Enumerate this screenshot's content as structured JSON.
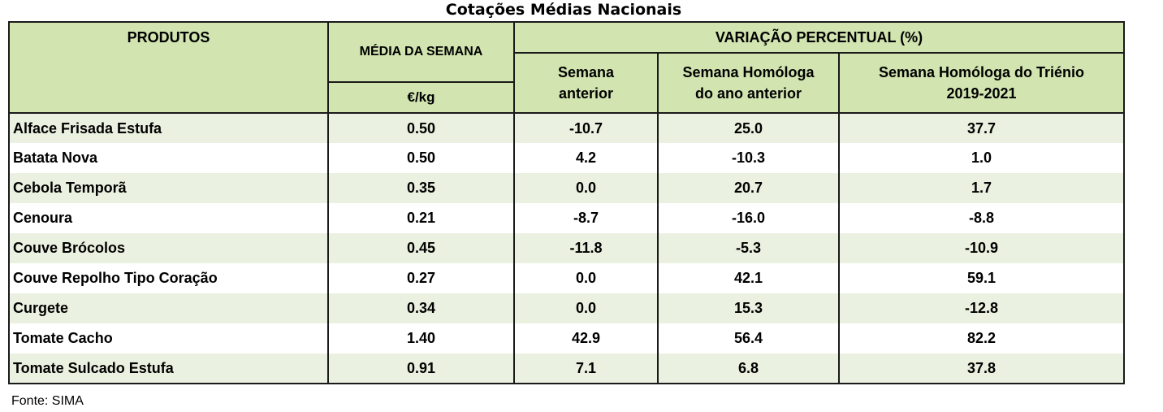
{
  "title": "Cotações Médias Nacionais",
  "headers": {
    "produtos": "PRODUTOS",
    "media": "MÉDIA DA SEMANA",
    "unit": "€/kg",
    "variacao": "VARIAÇÃO PERCENTUAL (%)",
    "semana_anterior_1": "Semana",
    "semana_anterior_2": "anterior",
    "homologa_1": "Semana Homóloga",
    "homologa_2": "do ano anterior",
    "trienio_1": "Semana Homóloga do Triénio",
    "trienio_2": "2019-2021"
  },
  "rows": [
    {
      "produto": "Alface Frisada Estufa",
      "media": "0.50",
      "anterior": "-10.7",
      "homologa": "25.0",
      "trienio": "37.7"
    },
    {
      "produto": "Batata Nova",
      "media": "0.50",
      "anterior": "4.2",
      "homologa": "-10.3",
      "trienio": "1.0"
    },
    {
      "produto": "Cebola Temporã",
      "media": "0.35",
      "anterior": "0.0",
      "homologa": "20.7",
      "trienio": "1.7"
    },
    {
      "produto": "Cenoura",
      "media": "0.21",
      "anterior": "-8.7",
      "homologa": "-16.0",
      "trienio": "-8.8"
    },
    {
      "produto": "Couve Brócolos",
      "media": "0.45",
      "anterior": "-11.8",
      "homologa": "-5.3",
      "trienio": "-10.9"
    },
    {
      "produto": "Couve Repolho Tipo Coração",
      "media": "0.27",
      "anterior": "0.0",
      "homologa": "42.1",
      "trienio": "59.1"
    },
    {
      "produto": "Curgete",
      "media": "0.34",
      "anterior": "0.0",
      "homologa": "15.3",
      "trienio": "-12.8"
    },
    {
      "produto": "Tomate Cacho",
      "media": "1.40",
      "anterior": "42.9",
      "homologa": "56.4",
      "trienio": "82.2"
    },
    {
      "produto": "Tomate Sulcado Estufa",
      "media": "0.91",
      "anterior": "7.1",
      "homologa": "6.8",
      "trienio": "37.8"
    }
  ],
  "source": "Fonte: SIMA",
  "colors": {
    "header_bg": "#d2e4b0",
    "row_odd_bg": "#ebf1e0",
    "row_even_bg": "#ffffff",
    "border": "#1a1a1a"
  }
}
